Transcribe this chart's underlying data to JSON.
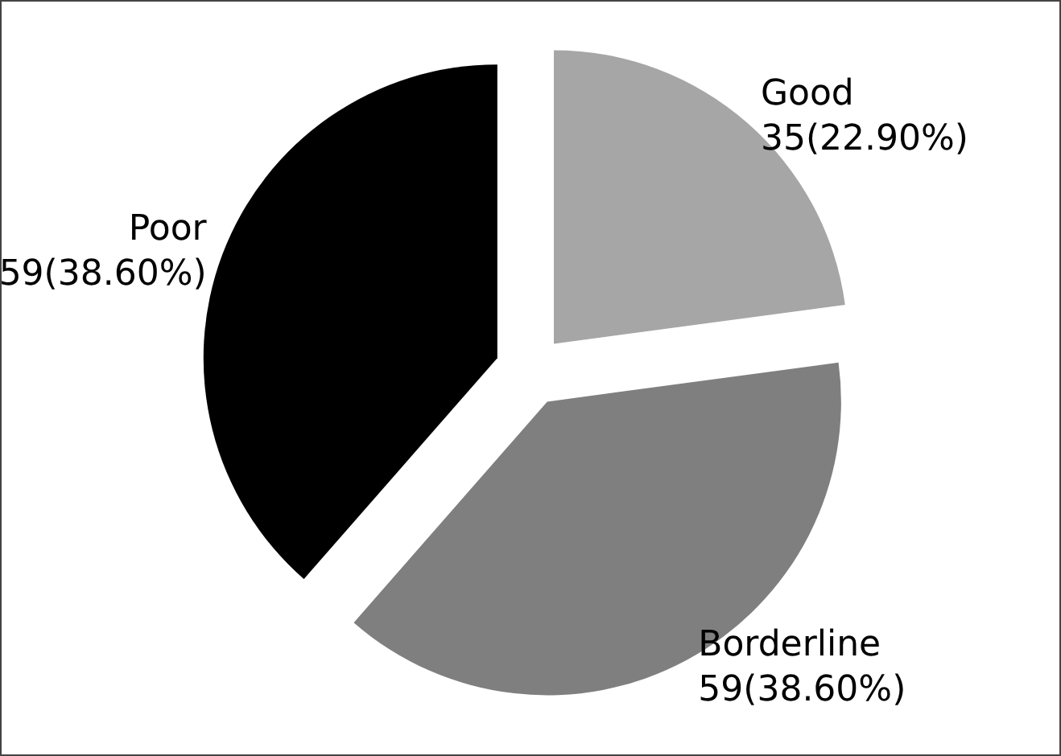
{
  "chart_data": {
    "type": "pie",
    "categories": [
      "Good",
      "Borderline",
      "Poor"
    ],
    "values": [
      35,
      59,
      59
    ],
    "value_labels": [
      "35(22.90%)",
      "59(38.60%)",
      "59(38.60%)"
    ],
    "colors": [
      "#a6a6a6",
      "#7f7f7f",
      "#000000"
    ],
    "legend": false
  }
}
